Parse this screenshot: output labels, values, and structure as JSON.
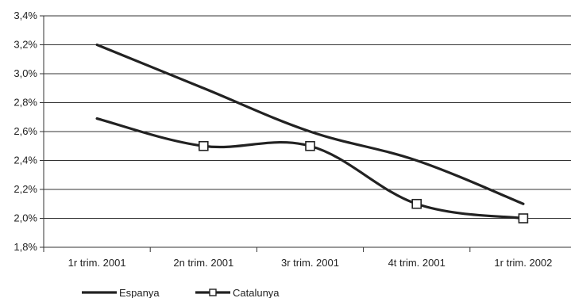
{
  "chart_data": {
    "type": "line",
    "categories": [
      "1r trim. 2001",
      "2n trim. 2001",
      "3r trim. 2001",
      "4t trim. 2001",
      "1r trim. 2002"
    ],
    "ylim": [
      1.8,
      3.4
    ],
    "yticks": [
      "1,8%",
      "2,0%",
      "2,2%",
      "2,4%",
      "2,6%",
      "2,8%",
      "3,0%",
      "3,2%",
      "3,4%"
    ],
    "grid": true,
    "legend": "bottom-left",
    "series": [
      {
        "name": "Espanya",
        "color": "#222222",
        "marker": "none",
        "values": [
          3.2,
          2.9,
          2.6,
          2.4,
          2.1
        ]
      },
      {
        "name": "Catalunya",
        "color": "#222222",
        "marker": "square",
        "values": [
          2.69,
          2.5,
          2.5,
          2.1,
          2.0
        ]
      }
    ]
  }
}
